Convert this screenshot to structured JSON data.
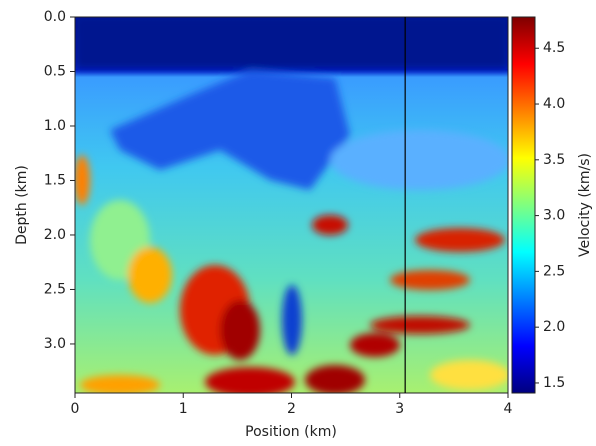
{
  "chart_data": {
    "type": "heatmap",
    "x_label": "Position (km)",
    "y_label": "Depth (km)",
    "colorbar_label": "Velocity (km/s)",
    "xlim": [
      0,
      4
    ],
    "xticks": [
      0,
      1,
      2,
      3,
      4
    ],
    "ylim": [
      3.45,
      0
    ],
    "yticks": [
      {
        "value": 0,
        "label": "0.0"
      },
      0.5,
      {
        "value": 1,
        "label": "1.0"
      },
      1.5,
      {
        "value": 2,
        "label": "2.0"
      },
      2.5,
      {
        "value": 3,
        "label": "3.0"
      }
    ],
    "colorbar_lim": [
      1.41,
      4.78
    ],
    "colorbar_ticks": [
      1.5,
      {
        "value": 2,
        "label": "2.0"
      },
      2.5,
      {
        "value": 3,
        "label": "3.0"
      },
      3.5,
      {
        "value": 4,
        "label": "4.0"
      },
      4.5
    ],
    "colormap": "jet",
    "vline_x": 3.05,
    "vline_color": "#000000"
  }
}
